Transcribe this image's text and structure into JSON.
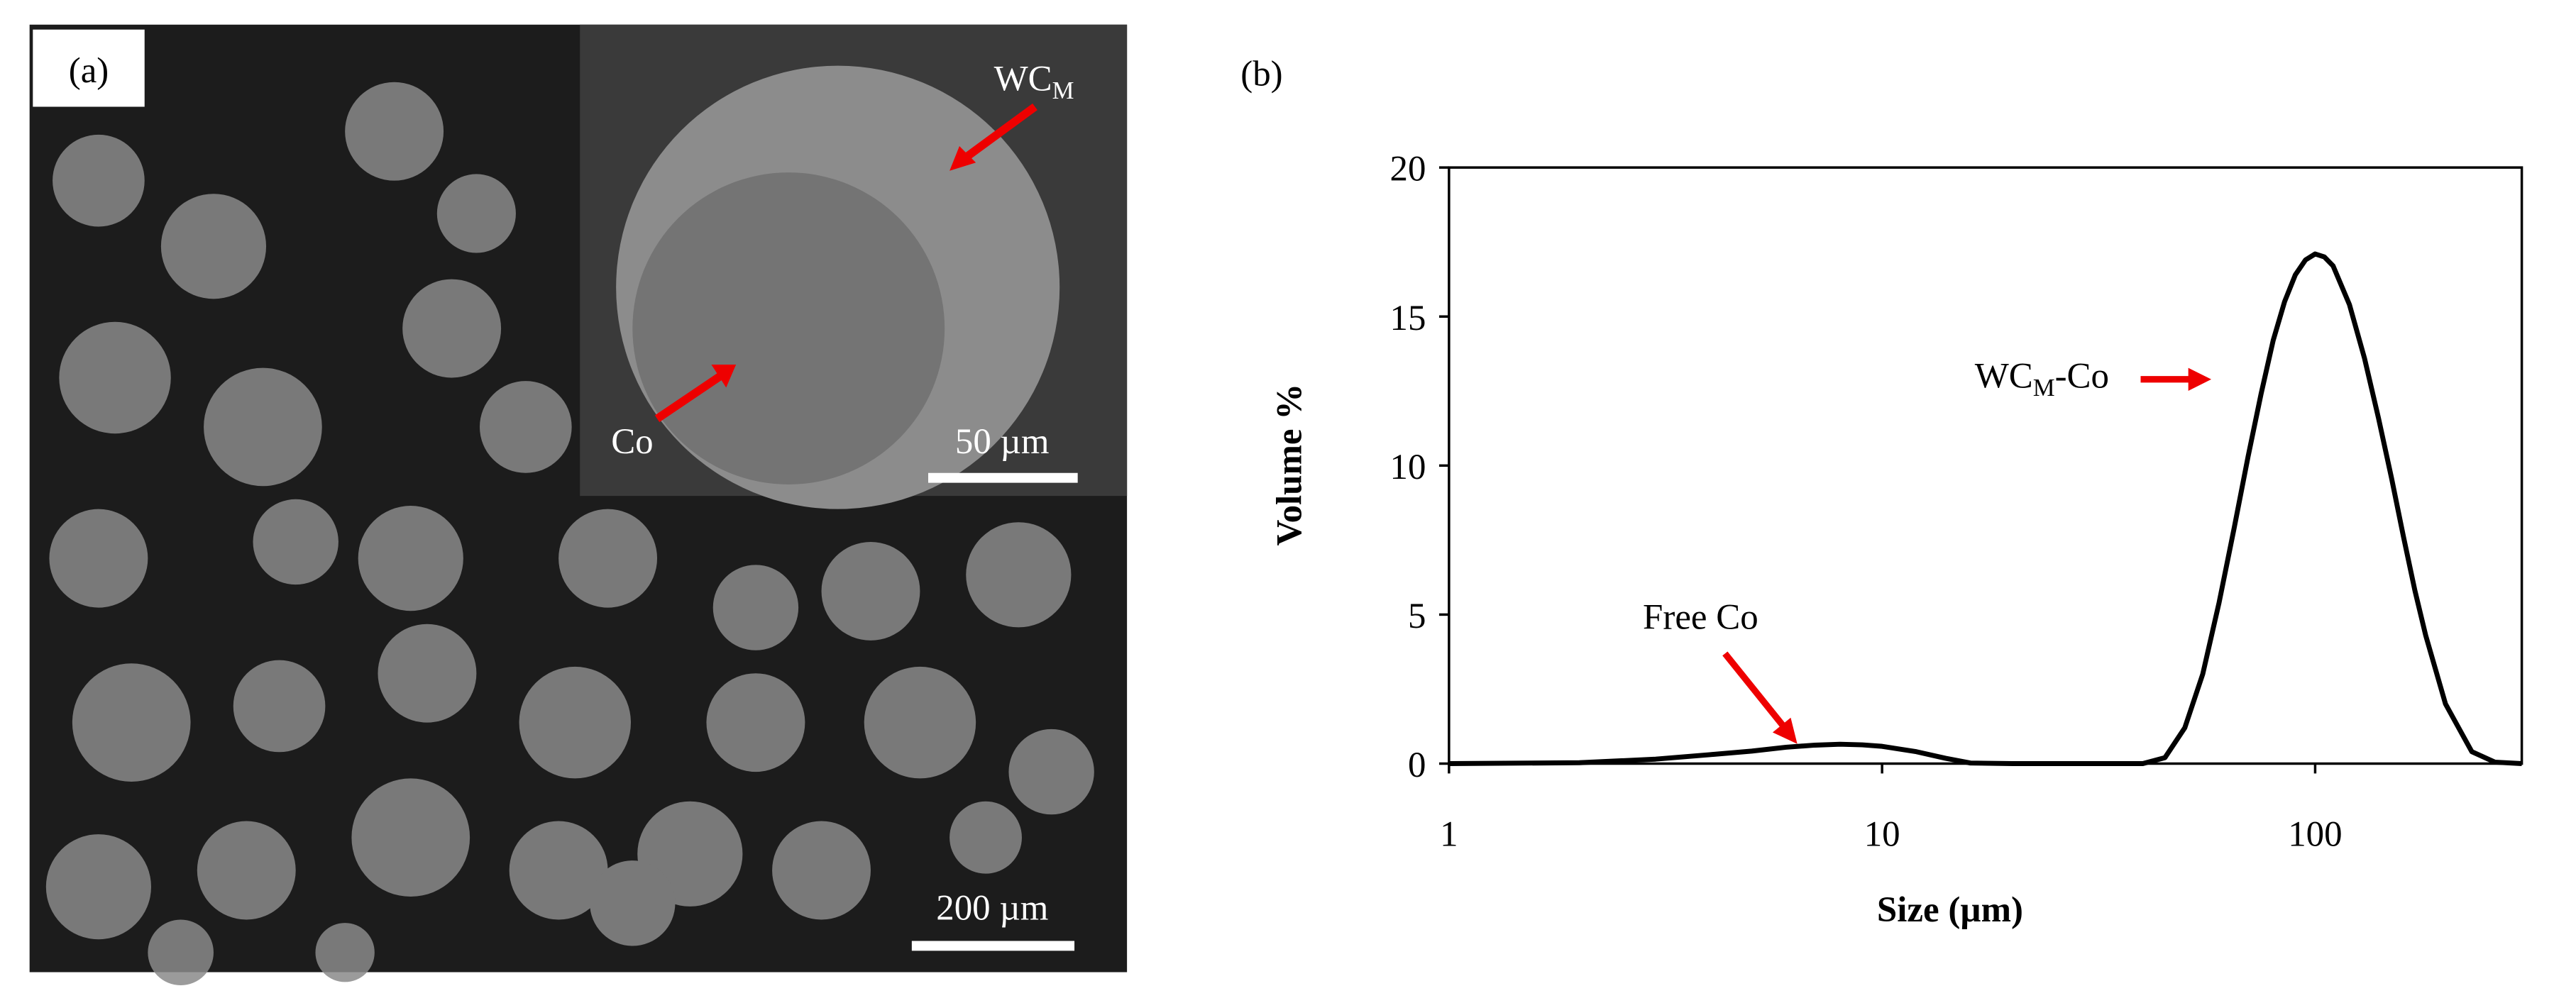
{
  "panel_a": {
    "label": "(a)",
    "wc_label": {
      "text": "WC",
      "sub": "M"
    },
    "co_label": "Co",
    "inset_scale_bar": "50 µm",
    "scale_bar": "200 µm"
  },
  "chart_data": {
    "type": "line",
    "panel_label": "(b)",
    "x_label": "Size (µm)",
    "y_label": "Volume %",
    "xscale": "log",
    "xlim": [
      1,
      300
    ],
    "xticks": [
      1,
      10,
      100
    ],
    "ylim": [
      0,
      20
    ],
    "yticks": [
      0,
      5,
      10,
      15,
      20
    ],
    "color": "#000000",
    "x": [
      1,
      2,
      3,
      4,
      5,
      6,
      7,
      8,
      9,
      10,
      12,
      14,
      16,
      20,
      30,
      40,
      45,
      50,
      55,
      60,
      65,
      70,
      75,
      80,
      85,
      90,
      95,
      100,
      105,
      110,
      120,
      130,
      140,
      150,
      160,
      170,
      180,
      200,
      230,
      260,
      300
    ],
    "values": [
      0,
      0.03,
      0.15,
      0.3,
      0.42,
      0.55,
      0.62,
      0.65,
      0.63,
      0.58,
      0.4,
      0.18,
      0.02,
      0,
      0,
      0,
      0.2,
      1.2,
      3.0,
      5.4,
      7.9,
      10.3,
      12.4,
      14.2,
      15.5,
      16.4,
      16.9,
      17.1,
      17.0,
      16.7,
      15.4,
      13.6,
      11.6,
      9.6,
      7.6,
      5.8,
      4.3,
      2.0,
      0.4,
      0.05,
      0
    ],
    "annotations": [
      {
        "text": "Free Co"
      },
      {
        "text": "WC",
        "sub": "M",
        "suffix": "-Co"
      }
    ]
  }
}
